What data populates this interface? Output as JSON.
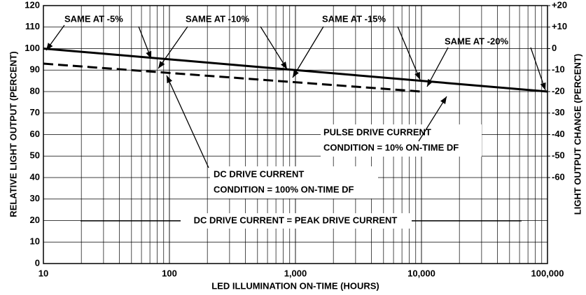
{
  "chart_data": {
    "type": "line",
    "x_label": "LED ILLUMINATION ON-TIME (HOURS)",
    "y_label": "RELATIVE LIGHT OUTPUT (PERCENT)",
    "y2_label": "LIGHT OUTPUT CHANGE (PERCENT)",
    "xscale": "log",
    "grid": true,
    "xlim": [
      10,
      100000
    ],
    "xticks": [
      10,
      100,
      {
        "value": 1000,
        "label": "1,000"
      },
      {
        "value": 10000,
        "label": "10,000"
      },
      {
        "value": 100000,
        "label": "100,000"
      }
    ],
    "ylim": [
      0,
      120
    ],
    "yticks": [
      0,
      10,
      20,
      30,
      40,
      50,
      60,
      70,
      80,
      90,
      100,
      110,
      120
    ],
    "y2lim": [
      -100,
      20
    ],
    "y2ticks": [
      {
        "value": 20,
        "label": "+20"
      },
      {
        "value": 10,
        "label": "+10"
      },
      0,
      -10,
      -20,
      -30,
      -40,
      -50,
      -60
    ],
    "series": [
      {
        "name": "PULSE DRIVE CURRENT CONDITION = 10% ON-TIME DF",
        "color": "#000000",
        "dash": false,
        "x": [
          10,
          100000
        ],
        "values": [
          100,
          80
        ]
      },
      {
        "name": "DC DRIVE CURRENT CONDITION = 100% ON-TIME DF",
        "color": "#000000",
        "dash": true,
        "x": [
          10,
          10000
        ],
        "values": [
          93,
          80
        ]
      }
    ],
    "annotations": [
      "SAME AT -5%",
      "SAME AT -10%",
      "SAME AT -15%",
      "SAME AT -20%",
      "PULSE DRIVE CURRENT",
      "CONDITION = 10% ON-TIME DF",
      "DC DRIVE CURRENT",
      "CONDITION = 100% ON-TIME DF",
      "DC DRIVE CURRENT = PEAK DRIVE CURRENT"
    ]
  }
}
